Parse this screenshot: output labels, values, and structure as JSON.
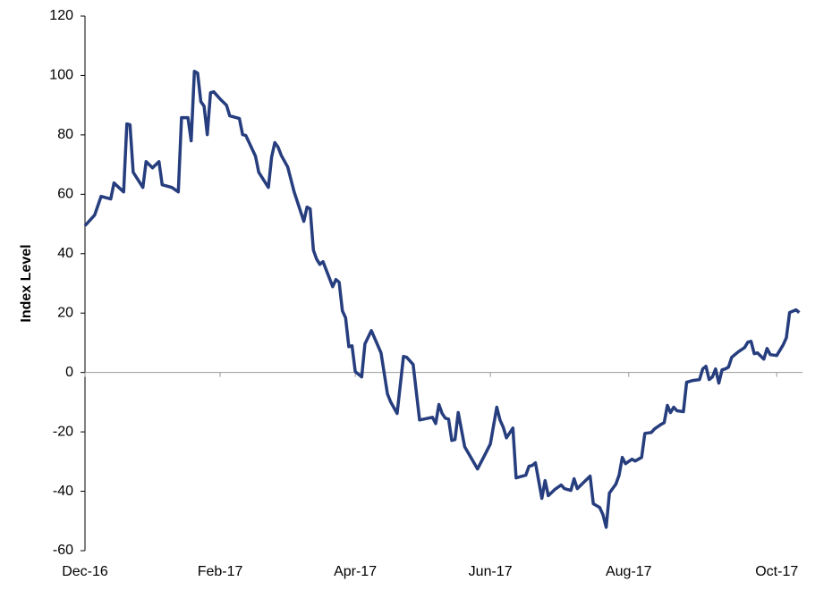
{
  "chart_data": {
    "type": "line",
    "ylabel": "Index Level",
    "color": "#263d7e",
    "ylim": [
      -60,
      120
    ],
    "yticks": [
      -60,
      -40,
      -20,
      0,
      20,
      40,
      60,
      80,
      100,
      120
    ],
    "xlim": [
      0,
      223
    ],
    "xticks": [
      {
        "value": 0,
        "label": "Dec-16"
      },
      {
        "value": 42,
        "label": "Feb-17"
      },
      {
        "value": 84,
        "label": "Apr-17"
      },
      {
        "value": 126,
        "label": "Jun-17"
      },
      {
        "value": 169,
        "label": "Aug-17"
      },
      {
        "value": 215,
        "label": "Oct-17"
      }
    ],
    "x": [
      0,
      3,
      5,
      8,
      9,
      12,
      13,
      14,
      15,
      18,
      19,
      21,
      23,
      24,
      27,
      29,
      30,
      32,
      33,
      34,
      35,
      36,
      37,
      38,
      39,
      40,
      42,
      44,
      45,
      48,
      49,
      50,
      53,
      54,
      57,
      58,
      59,
      60,
      61,
      63,
      65,
      68,
      69,
      70,
      71,
      72,
      73,
      74,
      77,
      78,
      79,
      80,
      81,
      82,
      83,
      84,
      86,
      87,
      89,
      92,
      94,
      95,
      97,
      99,
      100,
      102,
      104,
      108,
      109,
      110,
      111,
      112,
      113,
      114,
      115,
      116,
      118,
      122,
      124,
      126,
      128,
      129,
      130,
      131,
      133,
      134,
      137,
      138,
      139,
      140,
      142,
      143,
      144,
      146,
      148,
      149,
      151,
      152,
      153,
      155,
      157,
      158,
      160,
      161,
      162,
      163,
      165,
      166,
      167,
      168,
      170,
      171,
      173,
      174,
      176,
      177,
      179,
      180,
      181,
      182,
      183,
      184,
      186,
      187,
      189,
      191,
      192,
      193,
      194,
      195,
      196,
      197,
      198,
      199,
      200,
      201,
      203,
      205,
      206,
      207,
      208,
      209,
      211,
      212,
      213,
      215,
      217,
      218,
      219,
      221,
      222
    ],
    "values": [
      49.4,
      53.0,
      59.3,
      58.4,
      63.8,
      60.8,
      83.7,
      83.4,
      67.4,
      62.3,
      71.0,
      68.9,
      71.0,
      63.2,
      62.3,
      60.8,
      85.8,
      85.8,
      78.0,
      101.4,
      100.8,
      91.2,
      89.7,
      80.1,
      94.2,
      94.5,
      92.1,
      90.0,
      86.4,
      85.5,
      80.1,
      79.8,
      72.8,
      67.4,
      62.3,
      72.5,
      77.4,
      75.9,
      73.1,
      69.2,
      60.8,
      50.9,
      55.7,
      55.1,
      41.2,
      38.2,
      36.4,
      37.3,
      28.9,
      31.3,
      30.4,
      20.8,
      18.4,
      8.7,
      9.0,
      0.3,
      -1.5,
      9.6,
      14.1,
      6.6,
      -7.2,
      -9.9,
      -13.8,
      5.4,
      5.1,
      2.7,
      -16.0,
      -15.1,
      -17.2,
      -10.8,
      -13.8,
      -15.4,
      -15.7,
      -22.9,
      -22.6,
      -13.5,
      -25.0,
      -32.5,
      -28.3,
      -24.1,
      -11.7,
      -16.0,
      -18.4,
      -22.0,
      -18.7,
      -35.5,
      -34.6,
      -31.6,
      -31.3,
      -30.4,
      -42.4,
      -36.4,
      -41.5,
      -39.4,
      -37.9,
      -39.1,
      -39.7,
      -35.8,
      -39.1,
      -37.0,
      -34.9,
      -44.2,
      -45.5,
      -47.9,
      -52.1,
      -40.6,
      -37.6,
      -34.6,
      -28.6,
      -30.7,
      -29.2,
      -29.8,
      -28.6,
      -20.5,
      -20.2,
      -19.0,
      -17.5,
      -16.9,
      -11.1,
      -13.5,
      -11.7,
      -12.9,
      -13.2,
      -3.3,
      -2.7,
      -2.4,
      1.2,
      2.1,
      -2.4,
      -1.5,
      1.2,
      -3.6,
      0.9,
      1.2,
      1.8,
      5.1,
      6.9,
      8.4,
      10.2,
      10.5,
      6.3,
      6.6,
      4.5,
      8.1,
      6.0,
      5.7,
      9.3,
      11.7,
      20.2,
      21.1,
      20.2
    ]
  }
}
